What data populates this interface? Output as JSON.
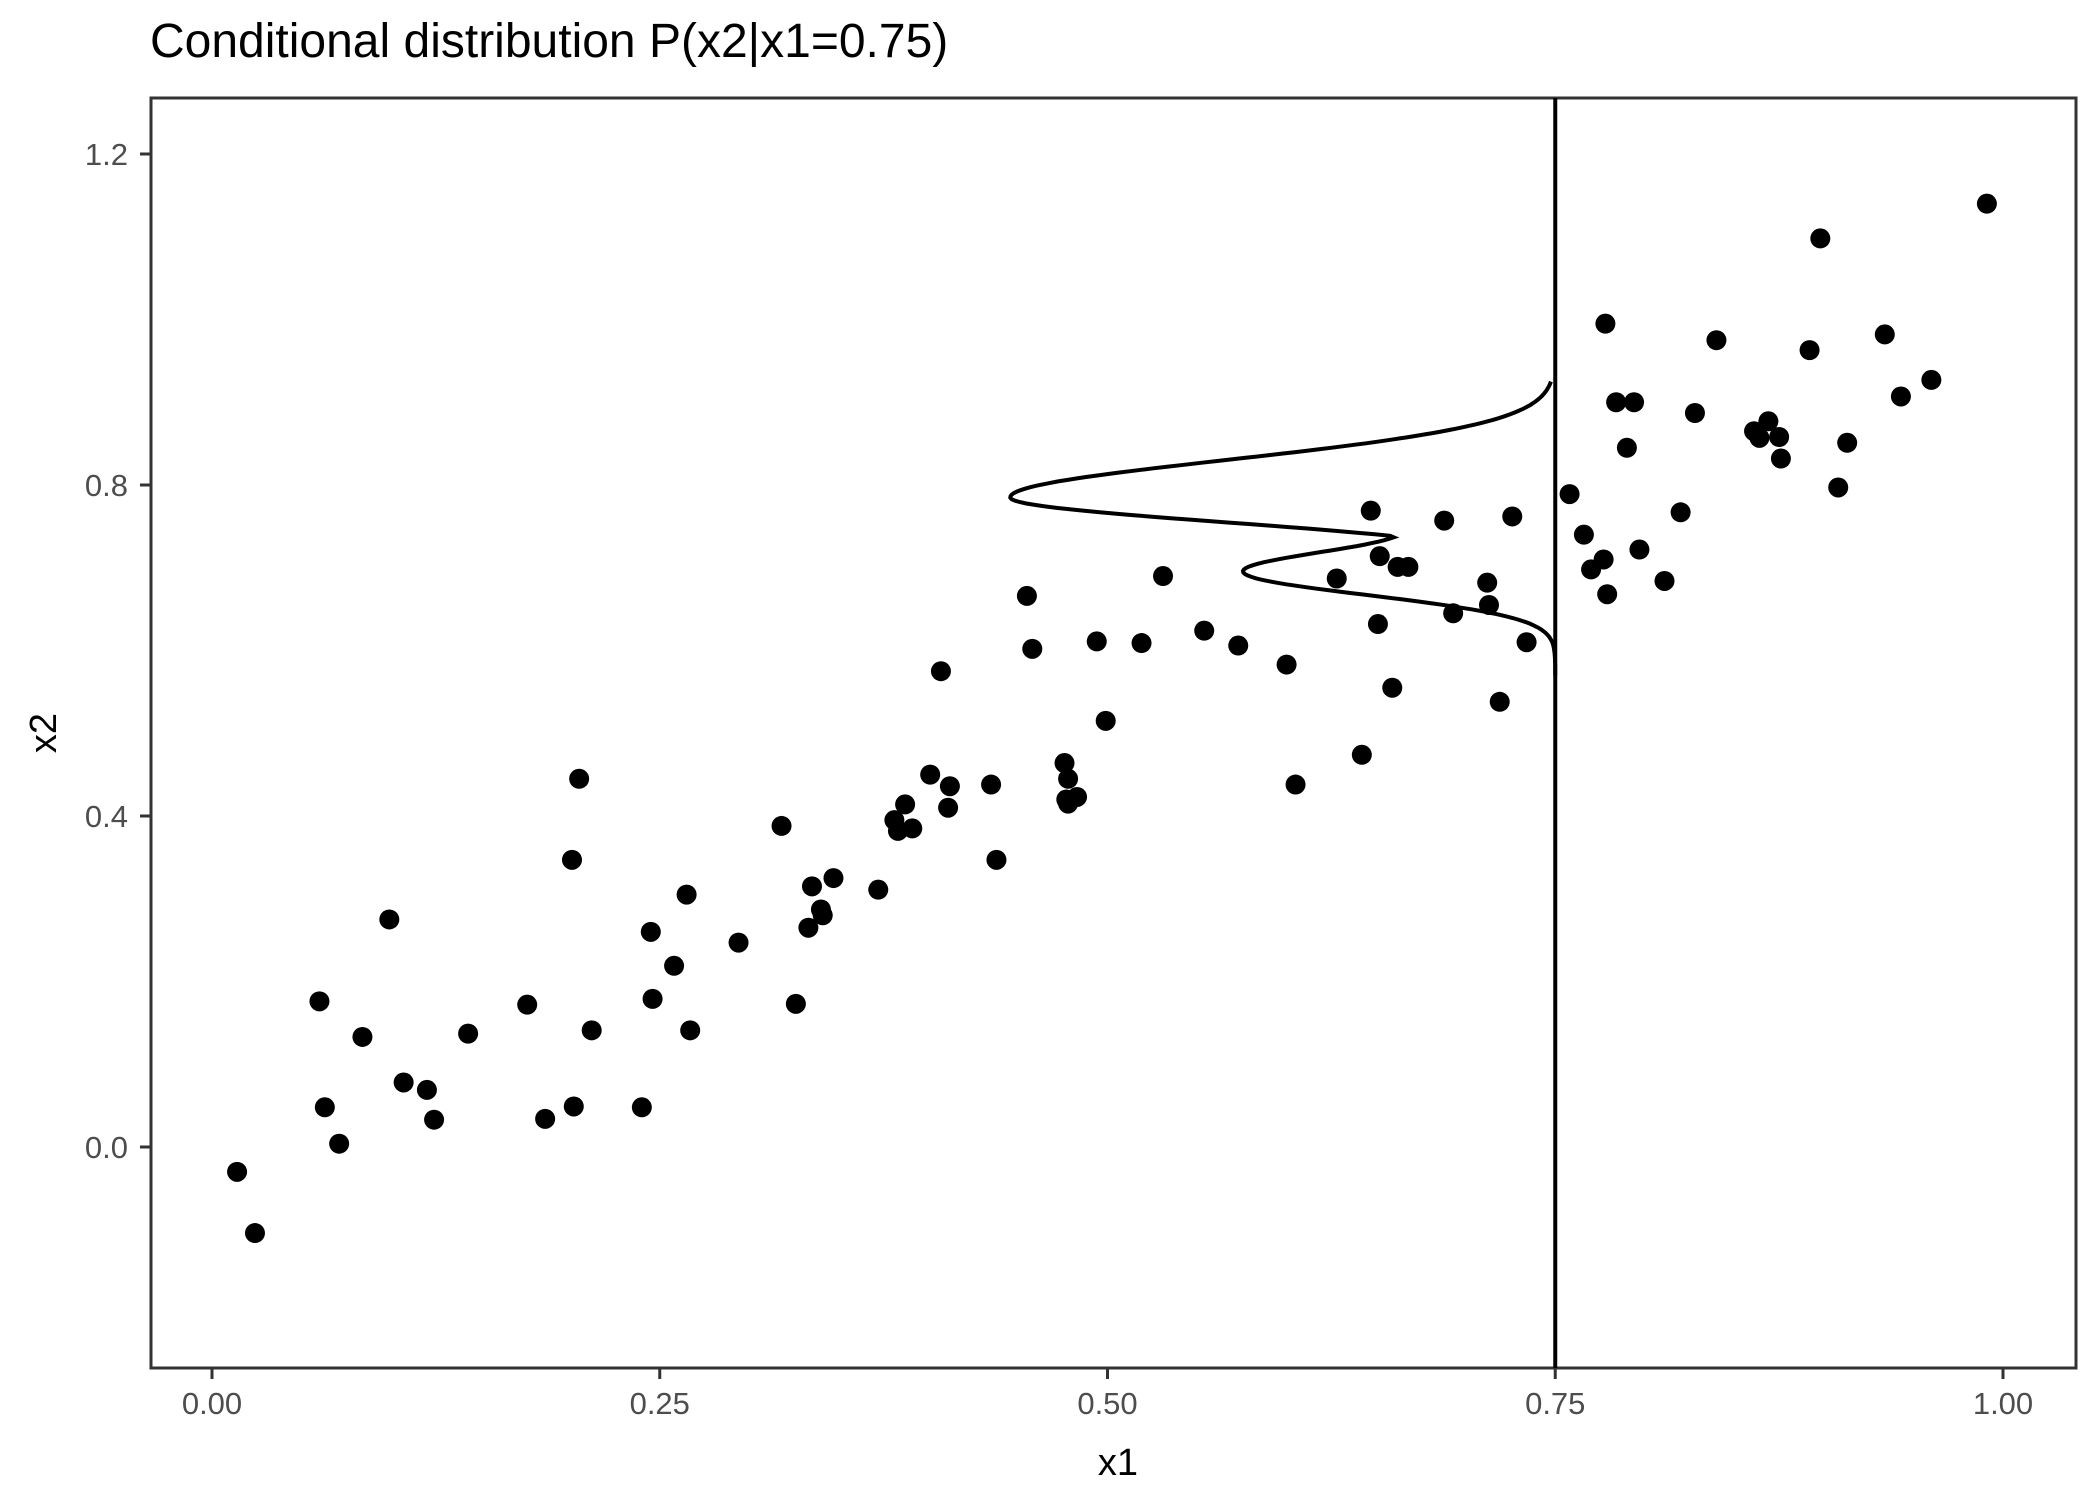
{
  "title": "Conditional distribution P(x2|x1=0.75)",
  "colors": {
    "points": "#000000",
    "panel_border": "#333333",
    "tick_label": "#4d4d4d",
    "background": "#ffffff"
  },
  "chart_data": {
    "type": "scatter",
    "title": "Conditional distribution P(x2|x1=0.75)",
    "xlabel": "x1",
    "ylabel": "x2",
    "xlim": [
      -0.07,
      1.04
    ],
    "ylim": [
      -0.27,
      1.27
    ],
    "x_ticks": [
      "0.00",
      "0.25",
      "0.50",
      "0.75",
      "1.00"
    ],
    "y_ticks": [
      "0.0",
      "0.4",
      "0.8",
      "1.2"
    ],
    "grid": false,
    "legend": "none",
    "vline": {
      "x": 0.75
    },
    "annotations": [
      {
        "type": "density_curve",
        "description": "Conditional density of x2 given x1=0.75, drawn leftward from the vertical line",
        "x2_range": [
          0.57,
          0.925
        ],
        "peak_x2": 0.785,
        "secondary_shoulder_x2": 0.71
      }
    ],
    "points": [
      [
        0.014,
        -0.03
      ],
      [
        0.024,
        -0.104
      ],
      [
        0.06,
        0.176
      ],
      [
        0.063,
        0.048
      ],
      [
        0.071,
        0.004
      ],
      [
        0.084,
        0.133
      ],
      [
        0.099,
        0.275
      ],
      [
        0.107,
        0.078
      ],
      [
        0.12,
        0.069
      ],
      [
        0.124,
        0.033
      ],
      [
        0.143,
        0.137
      ],
      [
        0.176,
        0.172
      ],
      [
        0.186,
        0.034
      ],
      [
        0.201,
        0.347
      ],
      [
        0.202,
        0.049
      ],
      [
        0.205,
        0.445
      ],
      [
        0.212,
        0.141
      ],
      [
        0.24,
        0.048
      ],
      [
        0.245,
        0.26
      ],
      [
        0.246,
        0.179
      ],
      [
        0.258,
        0.219
      ],
      [
        0.265,
        0.305
      ],
      [
        0.267,
        0.141
      ],
      [
        0.294,
        0.247
      ],
      [
        0.318,
        0.388
      ],
      [
        0.326,
        0.173
      ],
      [
        0.333,
        0.265
      ],
      [
        0.335,
        0.315
      ],
      [
        0.34,
        0.287
      ],
      [
        0.341,
        0.28
      ],
      [
        0.347,
        0.325
      ],
      [
        0.372,
        0.311
      ],
      [
        0.381,
        0.395
      ],
      [
        0.383,
        0.382
      ],
      [
        0.387,
        0.414
      ],
      [
        0.391,
        0.385
      ],
      [
        0.401,
        0.45
      ],
      [
        0.407,
        0.575
      ],
      [
        0.411,
        0.41
      ],
      [
        0.412,
        0.436
      ],
      [
        0.435,
        0.438
      ],
      [
        0.438,
        0.347
      ],
      [
        0.455,
        0.666
      ],
      [
        0.458,
        0.602
      ],
      [
        0.476,
        0.464
      ],
      [
        0.477,
        0.42
      ],
      [
        0.478,
        0.445
      ],
      [
        0.478,
        0.415
      ],
      [
        0.483,
        0.423
      ],
      [
        0.494,
        0.611
      ],
      [
        0.499,
        0.515
      ],
      [
        0.519,
        0.609
      ],
      [
        0.531,
        0.69
      ],
      [
        0.554,
        0.624
      ],
      [
        0.573,
        0.606
      ],
      [
        0.6,
        0.583
      ],
      [
        0.605,
        0.438
      ],
      [
        0.628,
        0.687
      ],
      [
        0.642,
        0.474
      ],
      [
        0.647,
        0.769
      ],
      [
        0.651,
        0.632
      ],
      [
        0.652,
        0.714
      ],
      [
        0.659,
        0.555
      ],
      [
        0.662,
        0.701
      ],
      [
        0.668,
        0.701
      ],
      [
        0.688,
        0.757
      ],
      [
        0.693,
        0.645
      ],
      [
        0.712,
        0.682
      ],
      [
        0.713,
        0.655
      ],
      [
        0.719,
        0.538
      ],
      [
        0.726,
        0.762
      ],
      [
        0.734,
        0.61
      ],
      [
        0.758,
        0.789
      ],
      [
        0.766,
        0.74
      ],
      [
        0.77,
        0.698
      ],
      [
        0.777,
        0.71
      ],
      [
        0.778,
        0.995
      ],
      [
        0.779,
        0.668
      ],
      [
        0.784,
        0.9
      ],
      [
        0.79,
        0.845
      ],
      [
        0.794,
        0.9
      ],
      [
        0.797,
        0.722
      ],
      [
        0.811,
        0.684
      ],
      [
        0.82,
        0.767
      ],
      [
        0.828,
        0.887
      ],
      [
        0.84,
        0.975
      ],
      [
        0.861,
        0.865
      ],
      [
        0.864,
        0.857
      ],
      [
        0.869,
        0.877
      ],
      [
        0.875,
        0.858
      ],
      [
        0.876,
        0.832
      ],
      [
        0.892,
        0.963
      ],
      [
        0.898,
        1.098
      ],
      [
        0.908,
        0.797
      ],
      [
        0.913,
        0.851
      ],
      [
        0.934,
        0.982
      ],
      [
        0.943,
        0.907
      ],
      [
        0.96,
        0.927
      ],
      [
        0.991,
        1.14
      ]
    ]
  }
}
